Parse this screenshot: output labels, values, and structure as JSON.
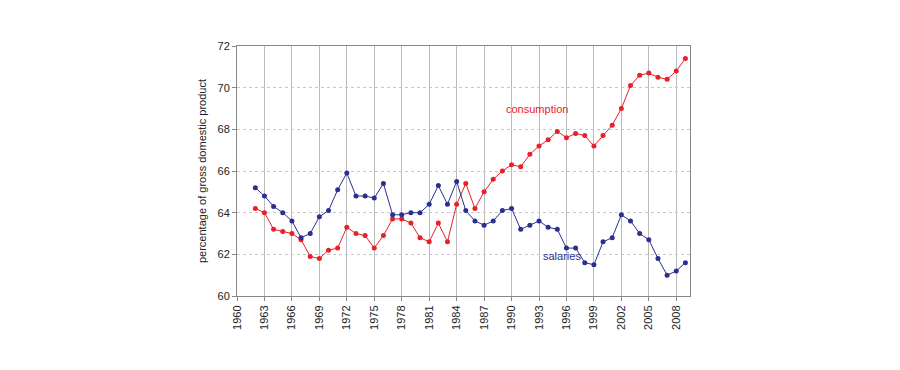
{
  "chart_data": {
    "type": "line",
    "y_label": "percentage of gross domestic product",
    "x": [
      1962,
      1963,
      1964,
      1965,
      1966,
      1967,
      1968,
      1969,
      1970,
      1971,
      1972,
      1973,
      1974,
      1975,
      1976,
      1977,
      1978,
      1979,
      1980,
      1981,
      1982,
      1983,
      1984,
      1985,
      1986,
      1987,
      1988,
      1989,
      1990,
      1991,
      1992,
      1993,
      1994,
      1995,
      1996,
      1997,
      1998,
      1999,
      2000,
      2001,
      2002,
      2003,
      2004,
      2005,
      2006,
      2007,
      2008,
      2009
    ],
    "series": [
      {
        "name": "consumption",
        "color": "#e8202a",
        "marker": "circle",
        "line_style": "solid",
        "values": [
          64.2,
          64.0,
          63.2,
          63.1,
          63.0,
          62.7,
          61.9,
          61.8,
          62.2,
          62.3,
          63.3,
          63.0,
          62.9,
          62.3,
          62.9,
          63.7,
          63.7,
          63.5,
          62.8,
          62.6,
          63.5,
          62.6,
          64.4,
          65.4,
          64.2,
          65.0,
          65.6,
          66.0,
          66.3,
          66.2,
          66.8,
          67.2,
          67.5,
          67.9,
          67.6,
          67.8,
          67.7,
          67.2,
          67.7,
          68.2,
          69.0,
          70.1,
          70.6,
          70.7,
          70.5,
          70.4,
          70.8,
          71.4
        ]
      },
      {
        "name": "salaries",
        "color": "#2b2f8f",
        "marker": "circle",
        "line_style": "solid",
        "values": [
          65.2,
          64.8,
          64.3,
          64.0,
          63.6,
          62.8,
          63.0,
          63.8,
          64.1,
          65.1,
          65.9,
          64.8,
          64.8,
          64.7,
          65.4,
          63.9,
          63.9,
          64.0,
          64.0,
          64.4,
          65.3,
          64.4,
          65.5,
          64.1,
          63.6,
          63.4,
          63.6,
          64.1,
          64.2,
          63.2,
          63.4,
          63.6,
          63.3,
          63.2,
          62.3,
          62.3,
          61.6,
          61.5,
          62.6,
          62.8,
          63.9,
          63.6,
          63.0,
          62.7,
          61.8,
          61.0,
          61.2,
          61.6
        ]
      }
    ],
    "xlim": [
      1960,
      2009.5
    ],
    "xticks": [
      1960,
      1963,
      1966,
      1969,
      1972,
      1975,
      1978,
      1981,
      1984,
      1987,
      1990,
      1993,
      1996,
      1999,
      2002,
      2005,
      2008
    ],
    "ylim": [
      60,
      72
    ],
    "yticks": [
      60,
      62,
      64,
      66,
      68,
      70,
      72
    ],
    "grid": true
  }
}
